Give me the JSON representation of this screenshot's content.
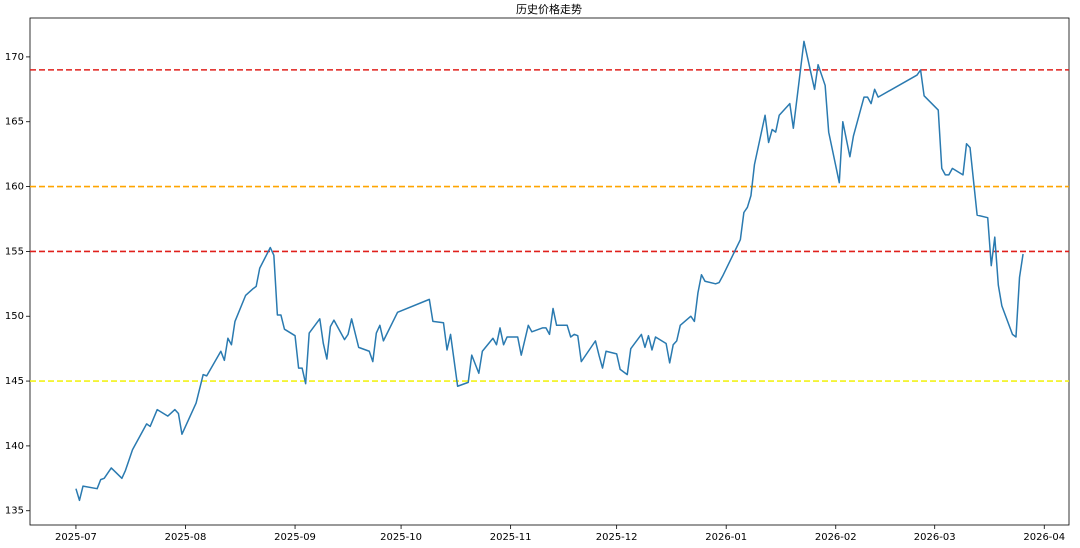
{
  "chart_data": {
    "type": "line",
    "title": "历史价格走势",
    "color": "#2a7ab0",
    "x": [
      "2025-07-01",
      "2025-07-02",
      "2025-07-03",
      "2025-07-07",
      "2025-07-08",
      "2025-07-09",
      "2025-07-11",
      "2025-07-14",
      "2025-07-15",
      "2025-07-17",
      "2025-07-21",
      "2025-07-22",
      "2025-07-24",
      "2025-07-27",
      "2025-07-29",
      "2025-07-30",
      "2025-07-31",
      "2025-08-04",
      "2025-08-06",
      "2025-08-07",
      "2025-08-11",
      "2025-08-12",
      "2025-08-13",
      "2025-08-14",
      "2025-08-15",
      "2025-08-18",
      "2025-08-20",
      "2025-08-21",
      "2025-08-22",
      "2025-08-25",
      "2025-08-26",
      "2025-08-27",
      "2025-08-28",
      "2025-08-29",
      "2025-09-01",
      "2025-09-02",
      "2025-09-03",
      "2025-09-04",
      "2025-09-05",
      "2025-09-08",
      "2025-09-09",
      "2025-09-10",
      "2025-09-11",
      "2025-09-12",
      "2025-09-15",
      "2025-09-16",
      "2025-09-17",
      "2025-09-19",
      "2025-09-22",
      "2025-09-23",
      "2025-09-24",
      "2025-09-25",
      "2025-09-26",
      "2025-09-30",
      "2025-10-09",
      "2025-10-10",
      "2025-10-13",
      "2025-10-14",
      "2025-10-15",
      "2025-10-17",
      "2025-10-20",
      "2025-10-21",
      "2025-10-23",
      "2025-10-24",
      "2025-10-27",
      "2025-10-28",
      "2025-10-29",
      "2025-10-30",
      "2025-10-31",
      "2025-11-03",
      "2025-11-04",
      "2025-11-06",
      "2025-11-07",
      "2025-11-10",
      "2025-11-11",
      "2025-11-12",
      "2025-11-13",
      "2025-11-14",
      "2025-11-17",
      "2025-11-18",
      "2025-11-19",
      "2025-11-20",
      "2025-11-21",
      "2025-11-25",
      "2025-11-26",
      "2025-11-27",
      "2025-11-28",
      "2025-12-01",
      "2025-12-02",
      "2025-12-04",
      "2025-12-05",
      "2025-12-08",
      "2025-12-09",
      "2025-12-10",
      "2025-12-11",
      "2025-12-12",
      "2025-12-15",
      "2025-12-16",
      "2025-12-17",
      "2025-12-18",
      "2025-12-19",
      "2025-12-22",
      "2025-12-23",
      "2025-12-24",
      "2025-12-25",
      "2025-12-26",
      "2025-12-29",
      "2025-12-30",
      "2025-12-31",
      "2026-01-05",
      "2026-01-06",
      "2026-01-07",
      "2026-01-08",
      "2026-01-09",
      "2026-01-12",
      "2026-01-13",
      "2026-01-14",
      "2026-01-15",
      "2026-01-16",
      "2026-01-19",
      "2026-01-20",
      "2026-01-23",
      "2026-01-26",
      "2026-01-27",
      "2026-01-29",
      "2026-01-30",
      "2026-02-02",
      "2026-02-03",
      "2026-02-05",
      "2026-02-06",
      "2026-02-09",
      "2026-02-10",
      "2026-02-11",
      "2026-02-12",
      "2026-02-13",
      "2026-02-24",
      "2026-02-25",
      "2026-02-26",
      "2026-03-02",
      "2026-03-03",
      "2026-03-04",
      "2026-03-05",
      "2026-03-06",
      "2026-03-09",
      "2026-03-10",
      "2026-03-11",
      "2026-03-13",
      "2026-03-16",
      "2026-03-17",
      "2026-03-18",
      "2026-03-19",
      "2026-03-20",
      "2026-03-23",
      "2026-03-24",
      "2026-03-25",
      "2026-03-26"
    ],
    "values": [
      136.7,
      135.8,
      136.9,
      136.7,
      137.4,
      137.5,
      138.3,
      137.5,
      138.1,
      139.7,
      141.7,
      141.5,
      142.8,
      142.3,
      142.8,
      142.5,
      140.9,
      143.3,
      145.5,
      145.4,
      147.3,
      146.6,
      148.3,
      147.8,
      149.6,
      151.6,
      152.1,
      152.3,
      153.7,
      155.3,
      154.7,
      150.1,
      150.1,
      149.0,
      148.5,
      146.0,
      146.0,
      144.8,
      148.7,
      149.8,
      147.9,
      146.7,
      149.2,
      149.7,
      148.2,
      148.6,
      149.8,
      147.6,
      147.3,
      146.5,
      148.7,
      149.3,
      148.1,
      150.3,
      151.3,
      149.6,
      149.5,
      147.4,
      148.6,
      144.6,
      144.9,
      147.0,
      145.6,
      147.3,
      148.3,
      147.8,
      149.1,
      147.8,
      148.4,
      148.4,
      147.0,
      149.3,
      148.8,
      149.1,
      149.1,
      148.6,
      150.6,
      149.3,
      149.3,
      148.4,
      148.6,
      148.5,
      146.5,
      148.1,
      147.0,
      146.0,
      147.3,
      147.1,
      145.9,
      145.5,
      147.5,
      148.6,
      147.6,
      148.5,
      147.4,
      148.4,
      147.9,
      146.4,
      147.8,
      148.1,
      149.3,
      150.0,
      149.6,
      151.8,
      153.2,
      152.7,
      152.5,
      152.6,
      153.1,
      155.9,
      158.0,
      158.4,
      159.3,
      161.7,
      165.5,
      163.4,
      164.4,
      164.2,
      165.5,
      166.4,
      164.5,
      171.2,
      167.5,
      169.4,
      167.8,
      164.2,
      160.3,
      165.0,
      162.3,
      163.9,
      166.9,
      166.9,
      166.4,
      167.5,
      166.9,
      168.6,
      169.0,
      167.0,
      165.9,
      161.4,
      160.9,
      160.9,
      161.4,
      160.9,
      163.3,
      163.0,
      157.8,
      157.6,
      153.9,
      156.1,
      152.4,
      150.8,
      148.6,
      148.4,
      153.0,
      154.8
    ],
    "xlim": [
      "2025-06-18",
      "2026-04-08"
    ],
    "xticks": [
      {
        "value": "2025-07-01",
        "label": "2025-07"
      },
      {
        "value": "2025-08-01",
        "label": "2025-08"
      },
      {
        "value": "2025-09-01",
        "label": "2025-09"
      },
      {
        "value": "2025-10-01",
        "label": "2025-10"
      },
      {
        "value": "2025-11-01",
        "label": "2025-11"
      },
      {
        "value": "2025-12-01",
        "label": "2025-12"
      },
      {
        "value": "2026-01-01",
        "label": "2026-01"
      },
      {
        "value": "2026-02-01",
        "label": "2026-02"
      },
      {
        "value": "2026-03-01",
        "label": "2026-03"
      },
      {
        "value": "2026-04-01",
        "label": "2026-04"
      }
    ],
    "ylim": [
      133.9,
      173.0
    ],
    "yticks": [
      135,
      140,
      145,
      150,
      155,
      160,
      165,
      170
    ],
    "grid": false,
    "hlines": [
      {
        "value": 169,
        "color": "#e0201c"
      },
      {
        "value": 160,
        "color": "#ffa500"
      },
      {
        "value": 155,
        "color": "#e0201c"
      },
      {
        "value": 145,
        "color": "#f2f21a"
      }
    ]
  }
}
